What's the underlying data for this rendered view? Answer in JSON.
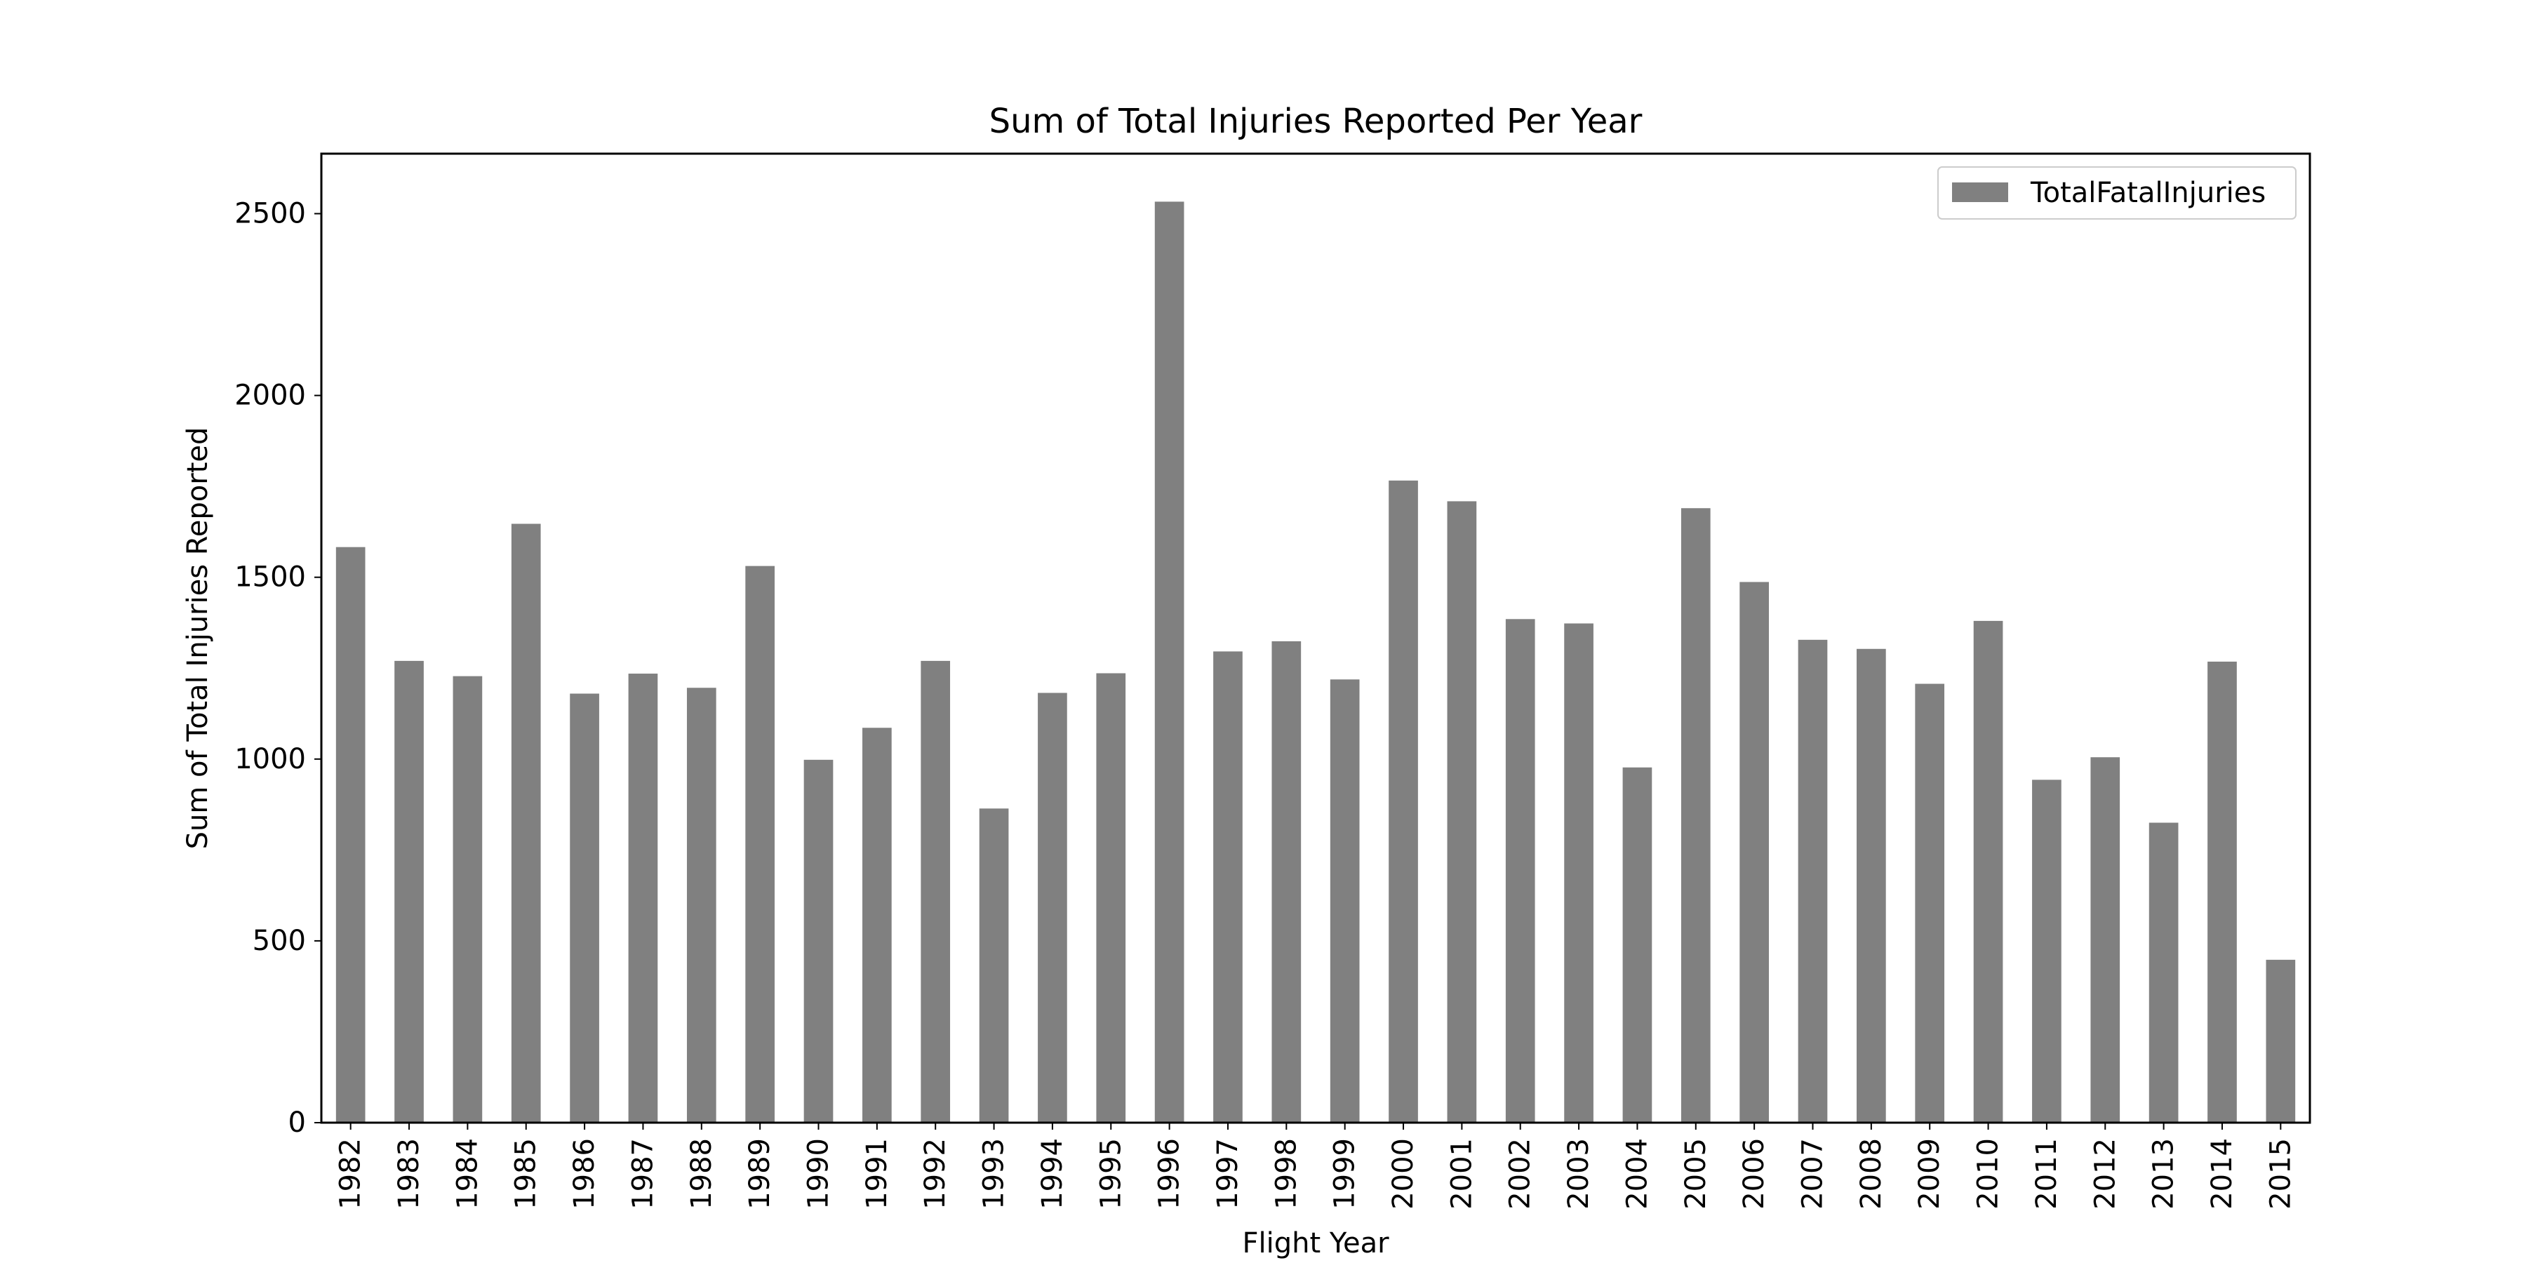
{
  "chart_data": {
    "type": "bar",
    "title": "Sum of Total Injuries Reported Per Year",
    "xlabel": "Flight Year",
    "ylabel": "Sum of Total Injuries Reported",
    "categories": [
      "1982",
      "1983",
      "1984",
      "1985",
      "1986",
      "1987",
      "1988",
      "1989",
      "1990",
      "1991",
      "1992",
      "1993",
      "1994",
      "1995",
      "1996",
      "1997",
      "1998",
      "1999",
      "2000",
      "2001",
      "2002",
      "2003",
      "2004",
      "2005",
      "2006",
      "2007",
      "2008",
      "2009",
      "2010",
      "2011",
      "2012",
      "2013",
      "2014",
      "2015"
    ],
    "series": [
      {
        "name": "TotalFatalInjuries",
        "color": "#808080",
        "values": [
          1583,
          1270,
          1228,
          1647,
          1180,
          1235,
          1196,
          1531,
          998,
          1086,
          1270,
          864,
          1182,
          1236,
          2533,
          1296,
          1324,
          1219,
          1766,
          1709,
          1385,
          1373,
          977,
          1690,
          1487,
          1328,
          1303,
          1207,
          1380,
          943,
          1005,
          825,
          1268,
          448
        ]
      }
    ],
    "ylim": [
      0,
      2665
    ],
    "yticks": [
      0,
      500,
      1000,
      1500,
      2000,
      2500
    ],
    "grid": false,
    "legend_position": "top-right"
  }
}
